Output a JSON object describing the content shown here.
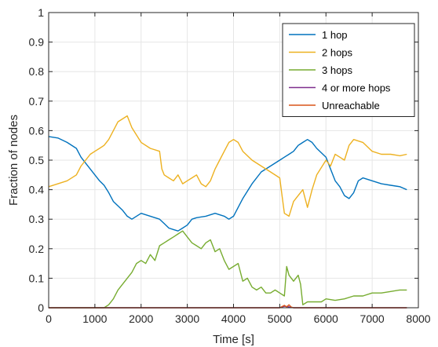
{
  "chart_data": {
    "type": "line",
    "xlabel": "Time [s]",
    "ylabel": "Fraction of nodes",
    "xlim": [
      0,
      8000
    ],
    "ylim": [
      0,
      1
    ],
    "xticks": [
      "0",
      "1000",
      "2000",
      "3000",
      "4000",
      "5000",
      "6000",
      "7000",
      "8000"
    ],
    "yticks": [
      "0",
      "0.1",
      "0.2",
      "0.3",
      "0.4",
      "0.5",
      "0.6",
      "0.7",
      "0.8",
      "0.9",
      "1"
    ],
    "grid": true,
    "legend_position": "top-right",
    "series": [
      {
        "name": "1 hop",
        "color": "#0072bd",
        "x": [
          0,
          200,
          400,
          600,
          700,
          800,
          900,
          1000,
          1100,
          1200,
          1300,
          1400,
          1500,
          1600,
          1700,
          1800,
          2000,
          2200,
          2400,
          2500,
          2600,
          2700,
          2800,
          2900,
          3000,
          3100,
          3200,
          3400,
          3600,
          3800,
          3900,
          4000,
          4100,
          4200,
          4400,
          4600,
          4800,
          5000,
          5100,
          5200,
          5300,
          5400,
          5500,
          5600,
          5700,
          5800,
          6000,
          6100,
          6200,
          6300,
          6400,
          6500,
          6600,
          6700,
          6800,
          7000,
          7200,
          7400,
          7600,
          7750
        ],
        "y": [
          0.58,
          0.575,
          0.56,
          0.54,
          0.51,
          0.49,
          0.47,
          0.45,
          0.43,
          0.415,
          0.39,
          0.36,
          0.345,
          0.33,
          0.31,
          0.3,
          0.32,
          0.31,
          0.3,
          0.285,
          0.27,
          0.265,
          0.26,
          0.27,
          0.28,
          0.3,
          0.305,
          0.31,
          0.32,
          0.31,
          0.3,
          0.31,
          0.34,
          0.37,
          0.42,
          0.46,
          0.48,
          0.5,
          0.51,
          0.52,
          0.53,
          0.55,
          0.56,
          0.57,
          0.56,
          0.54,
          0.51,
          0.47,
          0.43,
          0.41,
          0.38,
          0.37,
          0.39,
          0.43,
          0.44,
          0.43,
          0.42,
          0.415,
          0.41,
          0.4
        ]
      },
      {
        "name": "2 hops",
        "color": "#edb120",
        "x": [
          0,
          200,
          400,
          600,
          700,
          800,
          900,
          1000,
          1100,
          1200,
          1300,
          1400,
          1500,
          1600,
          1700,
          1800,
          2000,
          2200,
          2400,
          2450,
          2500,
          2600,
          2700,
          2800,
          2900,
          3000,
          3100,
          3200,
          3300,
          3400,
          3500,
          3600,
          3700,
          3800,
          3900,
          4000,
          4100,
          4200,
          4400,
          4600,
          4800,
          5000,
          5050,
          5100,
          5200,
          5300,
          5400,
          5500,
          5600,
          5700,
          5800,
          6000,
          6100,
          6200,
          6300,
          6400,
          6500,
          6600,
          6800,
          7000,
          7200,
          7400,
          7600,
          7750
        ],
        "y": [
          0.41,
          0.42,
          0.43,
          0.45,
          0.48,
          0.5,
          0.52,
          0.53,
          0.54,
          0.55,
          0.57,
          0.6,
          0.63,
          0.64,
          0.65,
          0.61,
          0.56,
          0.54,
          0.53,
          0.47,
          0.45,
          0.44,
          0.43,
          0.45,
          0.42,
          0.43,
          0.44,
          0.45,
          0.42,
          0.41,
          0.43,
          0.47,
          0.5,
          0.53,
          0.56,
          0.57,
          0.56,
          0.53,
          0.5,
          0.48,
          0.46,
          0.44,
          0.38,
          0.32,
          0.31,
          0.36,
          0.38,
          0.4,
          0.34,
          0.4,
          0.45,
          0.5,
          0.48,
          0.52,
          0.51,
          0.5,
          0.55,
          0.57,
          0.56,
          0.53,
          0.52,
          0.52,
          0.515,
          0.52
        ]
      },
      {
        "name": "3 hops",
        "color": "#77ac30",
        "x": [
          0,
          600,
          1200,
          1300,
          1400,
          1500,
          1600,
          1700,
          1800,
          1900,
          2000,
          2100,
          2200,
          2300,
          2400,
          2500,
          2600,
          2700,
          2800,
          2900,
          3000,
          3100,
          3200,
          3300,
          3400,
          3500,
          3600,
          3700,
          3800,
          3900,
          4000,
          4100,
          4200,
          4300,
          4400,
          4500,
          4600,
          4700,
          4800,
          4900,
          5000,
          5100,
          5150,
          5200,
          5300,
          5400,
          5450,
          5500,
          5600,
          5700,
          5800,
          5900,
          6000,
          6200,
          6400,
          6600,
          6800,
          7000,
          7200,
          7400,
          7600,
          7750
        ],
        "y": [
          0,
          0,
          0,
          0.01,
          0.03,
          0.06,
          0.08,
          0.1,
          0.12,
          0.15,
          0.16,
          0.15,
          0.18,
          0.16,
          0.21,
          0.22,
          0.23,
          0.24,
          0.25,
          0.26,
          0.24,
          0.22,
          0.21,
          0.2,
          0.22,
          0.23,
          0.19,
          0.2,
          0.16,
          0.13,
          0.14,
          0.15,
          0.09,
          0.1,
          0.07,
          0.06,
          0.07,
          0.05,
          0.05,
          0.06,
          0.05,
          0.04,
          0.14,
          0.11,
          0.09,
          0.11,
          0.08,
          0.01,
          0.02,
          0.02,
          0.02,
          0.02,
          0.03,
          0.025,
          0.03,
          0.04,
          0.04,
          0.05,
          0.05,
          0.055,
          0.06,
          0.06
        ]
      },
      {
        "name": "4 or more hops",
        "color": "#7e2f8e",
        "x": [
          0,
          5000,
          5100,
          5200,
          5300,
          7750
        ],
        "y": [
          0,
          0,
          0.005,
          0.003,
          0,
          0
        ]
      },
      {
        "name": "Unreachable",
        "color": "#d95319",
        "x": [
          0,
          5000,
          5100,
          5150,
          5200,
          5250,
          5300,
          7750
        ],
        "y": [
          0,
          0,
          0.008,
          0.003,
          0.01,
          0.002,
          0,
          0
        ]
      }
    ]
  }
}
